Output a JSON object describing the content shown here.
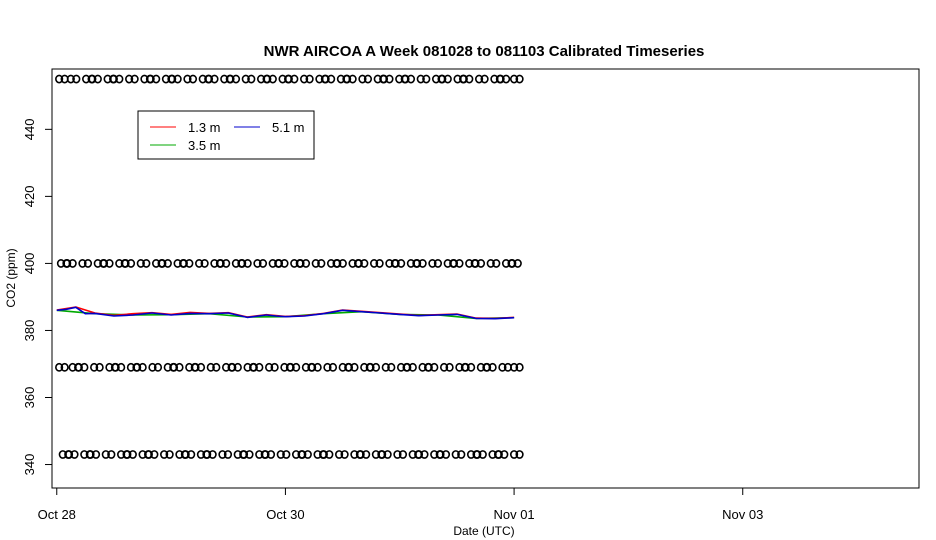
{
  "chart_data": {
    "type": "line",
    "title": "NWR AIRCOA A  Week 081028 to 081103  Calibrated Timeseries",
    "xlabel": "Date (UTC)",
    "ylabel": "CO2 (ppm)",
    "x_axis_type": "date",
    "xlim": [
      "2008-10-27T23:00",
      "2008-11-04T13:00"
    ],
    "ylim": [
      333,
      458
    ],
    "x_ticks": [
      {
        "date": "2008-10-28T00:00",
        "label": "Oct 28"
      },
      {
        "date": "2008-10-30T00:00",
        "label": "Oct 30"
      },
      {
        "date": "2008-11-01T00:00",
        "label": "Nov 01"
      },
      {
        "date": "2008-11-03T00:00",
        "label": "Nov 03"
      }
    ],
    "y_ticks": [
      340,
      360,
      380,
      400,
      420,
      440
    ],
    "grid": false,
    "legend": {
      "position": "top-left",
      "entries": [
        {
          "name": "1.3 m",
          "color": "#ff0000"
        },
        {
          "name": "3.5 m",
          "color": "#00aa00"
        },
        {
          "name": "5.1 m",
          "color": "#0000cc"
        }
      ]
    },
    "series": [
      {
        "name": "5.1 m",
        "color": "#0000cc",
        "x": [
          "2008-10-28T00:00",
          "2008-10-28T02:00",
          "2008-10-28T04:00",
          "2008-10-28T06:00",
          "2008-10-28T08:00",
          "2008-10-28T12:00",
          "2008-10-28T16:00",
          "2008-10-28T20:00",
          "2008-10-29T00:00",
          "2008-10-29T04:00",
          "2008-10-29T08:00",
          "2008-10-29T12:00",
          "2008-10-29T16:00",
          "2008-10-29T20:00",
          "2008-10-29T22:00",
          "2008-10-30T00:00",
          "2008-10-30T04:00",
          "2008-10-30T08:00",
          "2008-10-30T12:00",
          "2008-10-30T16:00",
          "2008-10-30T20:00",
          "2008-10-31T00:00",
          "2008-10-31T04:00",
          "2008-10-31T08:00",
          "2008-10-31T12:00",
          "2008-10-31T16:00",
          "2008-10-31T20:00",
          "2008-11-01T00:00"
        ],
        "values": [
          386.0,
          386.3,
          386.9,
          385.0,
          385.1,
          384.3,
          384.6,
          385.2,
          384.6,
          385.1,
          385.0,
          385.2,
          383.9,
          384.6,
          384.3,
          384.1,
          384.3,
          385.0,
          386.0,
          385.6,
          385.2,
          384.8,
          384.4,
          384.6,
          384.8,
          383.6,
          383.5,
          383.8
        ]
      },
      {
        "name": "1.3 m",
        "color": "#ff0000",
        "x": [
          "2008-10-28T00:00",
          "2008-10-28T04:00",
          "2008-10-28T08:00",
          "2008-10-28T12:00",
          "2008-10-28T16:00",
          "2008-10-28T20:00",
          "2008-10-29T00:00",
          "2008-10-29T04:00",
          "2008-10-29T08:00",
          "2008-10-29T12:00",
          "2008-10-29T16:00",
          "2008-10-29T20:00",
          "2008-10-30T00:00",
          "2008-10-30T04:00",
          "2008-10-30T08:00",
          "2008-10-30T12:00",
          "2008-10-30T16:00",
          "2008-10-30T20:00",
          "2008-10-31T00:00",
          "2008-10-31T04:00",
          "2008-10-31T08:00",
          "2008-10-31T12:00",
          "2008-10-31T16:00",
          "2008-10-31T20:00",
          "2008-11-01T00:00"
        ],
        "values": [
          386.1,
          387.0,
          385.2,
          384.5,
          385.0,
          385.3,
          384.8,
          385.4,
          385.1,
          385.3,
          384.0,
          384.7,
          384.2,
          384.4,
          385.1,
          386.1,
          385.7,
          385.3,
          384.9,
          384.5,
          384.7,
          384.9,
          383.7,
          383.6,
          383.9
        ]
      },
      {
        "name": "3.5 m",
        "color": "#00aa00",
        "x": [
          "2008-10-28T00:00",
          "2008-10-28T08:00",
          "2008-10-28T16:00",
          "2008-10-29T00:00",
          "2008-10-29T08:00",
          "2008-10-29T16:00",
          "2008-10-30T00:00",
          "2008-10-30T08:00",
          "2008-10-30T16:00",
          "2008-10-31T00:00",
          "2008-10-31T08:00",
          "2008-10-31T16:00",
          "2008-11-01T00:00"
        ],
        "values": [
          386.0,
          385.0,
          384.6,
          384.7,
          385.0,
          384.0,
          384.1,
          385.0,
          385.6,
          384.8,
          384.6,
          383.6,
          383.8
        ]
      }
    ],
    "calibration_points": {
      "marker": "open-circle",
      "levels": [
        455,
        400,
        369,
        343
      ],
      "x_start": "2008-10-28T00:30",
      "x_end": "2008-11-01T00:00",
      "count_per_level": 40
    }
  }
}
